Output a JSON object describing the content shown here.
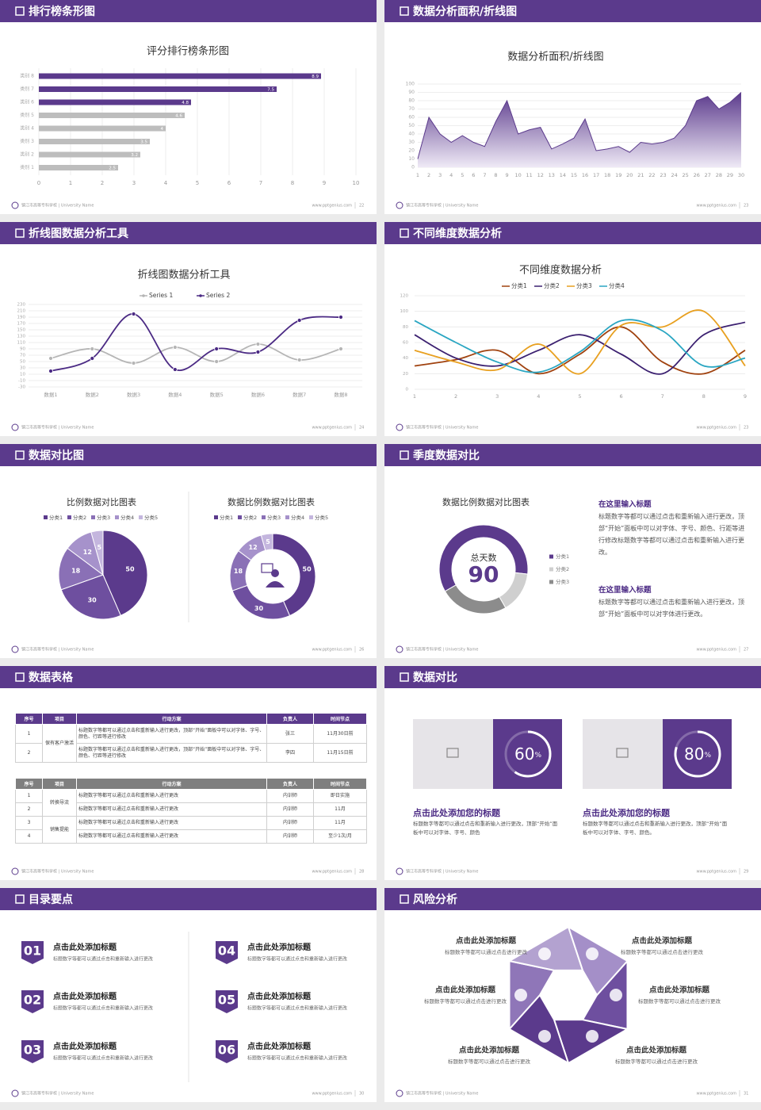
{
  "footer": {
    "school": "镇江市高等专科学校 | University Name",
    "site": "www.pptgenius.com"
  },
  "slides": [
    {
      "title": "排行榜条形图",
      "page": 22,
      "chart_data": {
        "type": "bar",
        "orientation": "horizontal",
        "title": "评分排行榜条形图",
        "categories": [
          "类别 8",
          "类别 7",
          "类别 6",
          "类别 5",
          "类别 4",
          "类别 3",
          "类别 2",
          "类别 1"
        ],
        "values": [
          8.9,
          7.5,
          4.8,
          4.6,
          4,
          3.5,
          3.2,
          2.5
        ],
        "colors": [
          "#5b3a8c",
          "#5b3a8c",
          "#5b3a8c",
          "#bdbdbd",
          "#bdbdbd",
          "#bdbdbd",
          "#bdbdbd",
          "#bdbdbd"
        ],
        "xlim": [
          0,
          10
        ],
        "xticks": [
          0,
          1,
          2,
          3,
          4,
          5,
          6,
          7,
          8,
          9,
          10
        ],
        "grid": true
      }
    },
    {
      "title": "数据分析面积/折线图",
      "page": 23,
      "chart_data": {
        "type": "area",
        "title": "数据分析面积/折线图",
        "categories": [
          "1",
          "2",
          "3",
          "4",
          "5",
          "6",
          "7",
          "8",
          "9",
          "10",
          "11",
          "12",
          "13",
          "14",
          "15",
          "16",
          "17",
          "18",
          "19",
          "20",
          "21",
          "22",
          "23",
          "24",
          "25",
          "26",
          "27",
          "28",
          "29",
          "30"
        ],
        "values": [
          10,
          60,
          40,
          30,
          38,
          30,
          25,
          55,
          80,
          40,
          45,
          48,
          22,
          28,
          35,
          58,
          20,
          22,
          25,
          18,
          30,
          28,
          30,
          35,
          50,
          80,
          85,
          70,
          78,
          90
        ],
        "color": "#5b3a8c",
        "ylim": [
          0,
          100
        ],
        "yticks": [
          0,
          10,
          20,
          30,
          40,
          50,
          60,
          70,
          80,
          90,
          100
        ],
        "grid": true
      }
    },
    {
      "title": "折线图数据分析工具",
      "page": 24,
      "chart_data": {
        "type": "line",
        "smooth": true,
        "markers": true,
        "title": "折线图数据分析工具",
        "categories": [
          "数据1",
          "数据2",
          "数据3",
          "数据4",
          "数据5",
          "数据6",
          "数据7",
          "数据8"
        ],
        "series": [
          {
            "name": "Series 1",
            "color": "#b5b5b5",
            "values": [
              60,
              90,
              45,
              95,
              50,
              105,
              55,
              90
            ]
          },
          {
            "name": "Series 2",
            "color": "#4b2a84",
            "values": [
              20,
              60,
              200,
              25,
              90,
              80,
              180,
              190
            ]
          }
        ],
        "ylim": [
          -30,
          230
        ],
        "yticks": [
          -30,
          -10,
          10,
          30,
          50,
          70,
          90,
          110,
          130,
          150,
          170,
          190,
          210,
          230
        ],
        "grid": true,
        "legend": "top"
      }
    },
    {
      "title": "不同维度数据分析",
      "page": 23,
      "chart_data": {
        "type": "line",
        "smooth": true,
        "markers": false,
        "title": "不同维度数据分析",
        "categories": [
          "1",
          "2",
          "3",
          "4",
          "5",
          "6",
          "7",
          "8",
          "9"
        ],
        "series": [
          {
            "name": "分类1",
            "color": "#a0420f",
            "values": [
              30,
              38,
              50,
              20,
              45,
              80,
              35,
              20,
              50
            ]
          },
          {
            "name": "分类2",
            "color": "#3b2070",
            "values": [
              70,
              40,
              30,
              50,
              70,
              45,
              20,
              70,
              86
            ]
          },
          {
            "name": "分类3",
            "color": "#e8a020",
            "values": [
              50,
              35,
              25,
              58,
              20,
              82,
              80,
              100,
              30
            ]
          },
          {
            "name": "分类4",
            "color": "#2aa6c2",
            "values": [
              88,
              60,
              35,
              22,
              48,
              88,
              75,
              30,
              40
            ]
          }
        ],
        "ylim": [
          0,
          120
        ],
        "yticks": [
          0,
          20,
          40,
          60,
          80,
          100,
          120
        ],
        "grid": true,
        "legend": "top"
      }
    },
    {
      "title": "数据对比图",
      "page": 26,
      "chart_data": [
        {
          "type": "pie",
          "title": "比例数据对比图表",
          "categories": [
            "分类1",
            "分类2",
            "分类3",
            "分类4",
            "分类5"
          ],
          "values": [
            50,
            30,
            18,
            12,
            5
          ],
          "colors": [
            "#5b3a8c",
            "#6e4f9f",
            "#8a70b6",
            "#a692cb",
            "#c4b6de"
          ],
          "legend": "top"
        },
        {
          "type": "donut",
          "title": "数据比例数据对比图表",
          "categories": [
            "分类1",
            "分类2",
            "分类3",
            "分类4",
            "分类5"
          ],
          "values": [
            50,
            30,
            18,
            12,
            5
          ],
          "colors": [
            "#5b3a8c",
            "#6e4f9f",
            "#8a70b6",
            "#a692cb",
            "#c4b6de"
          ],
          "legend": "top"
        }
      ]
    },
    {
      "title": "季度数据对比",
      "page": 27,
      "chart_data": {
        "type": "donut",
        "title": "数据比例数据对比图表",
        "categories": [
          "分类1",
          "分类2",
          "分类3"
        ],
        "values": [
          60,
          15,
          25
        ],
        "colors": [
          "#5b3a8c",
          "#cfcfcf",
          "#8c8c8c"
        ],
        "center_label": "总天数",
        "center_value": 90,
        "legend": "right"
      },
      "notes": [
        {
          "heading": "在这里输入标题",
          "text": "标题数字等都可以通过点击和重新输入进行更改，顶部“开始”面板中可以对字体、字号、颜色、行距等进行修改标题数字等都可以通过点击和重新输入进行更改。"
        },
        {
          "heading": "在这里输入标题",
          "text": "标题数字等都可以通过点击和重新输入进行更改，顶部“开始”面板中可以对字体进行更改。"
        }
      ]
    },
    {
      "title": "数据表格",
      "page": 28,
      "tables": [
        {
          "color": "#5b3a8c",
          "header": [
            "序号",
            "项目",
            "行动方案",
            "负责人",
            "时间节点"
          ],
          "groups": [
            {
              "item": "保有客户激活",
              "rows": [
                [
                  "1",
                  "标题数字等都可以通过点击和重新输入进行更改，顶部“开始”面板中可以对字体、字号、颜色、行距等进行修改",
                  "张三",
                  "11月30日前"
                ],
                [
                  "2",
                  "标题数字等都可以通过点击和重新输入进行更改，顶部“开始”面板中可以对字体、字号、颜色、行距等进行修改",
                  "李四",
                  "11月15日前"
                ]
              ]
            }
          ]
        },
        {
          "color": "#7f7f7f",
          "header": [
            "序号",
            "项目",
            "行动方案",
            "负责人",
            "时间节点"
          ],
          "groups": [
            {
              "item": "转换导流",
              "rows": [
                [
                  "1",
                  "标题数字等都可以通过点击和重新输入进行更改",
                  "内训师",
                  "即日实施"
                ],
                [
                  "2",
                  "标题数字等都可以通过点击和重新输入进行更改",
                  "内训师",
                  "11月"
                ]
              ]
            },
            {
              "item": "销售提能",
              "rows": [
                [
                  "3",
                  "标题数字等都可以通过点击和重新输入进行更改",
                  "内训师",
                  "11月"
                ],
                [
                  "4",
                  "标题数字等都可以通过点击和重新输入进行更改",
                  "内训师",
                  "至少1次/月"
                ]
              ]
            }
          ]
        }
      ]
    },
    {
      "title": "数据对比",
      "page": 29,
      "cards": [
        {
          "value": 60,
          "unit": "%",
          "heading": "点击此处添加您的标题",
          "text": "标题数字等都可以通过点击和重新输入进行更改，顶部“开始”面板中可以对字体、字号、颜色"
        },
        {
          "value": 80,
          "unit": "%",
          "heading": "点击此处添加您的标题",
          "text": "标题数字等都可以通过点击和重新输入进行更改，顶部“开始”面板中可以对字体、字号、颜色。"
        }
      ]
    },
    {
      "title": "目录要点",
      "page": 30,
      "items": [
        {
          "number": "01",
          "heading": "点击此处添加标题",
          "text": "标题数字等都可以通过点击和重新输入进行更改"
        },
        {
          "number": "02",
          "heading": "点击此处添加标题",
          "text": "标题数字等都可以通过点击和重新输入进行更改"
        },
        {
          "number": "03",
          "heading": "点击此处添加标题",
          "text": "标题数字等都可以通过点击和重新输入进行更改"
        },
        {
          "number": "04",
          "heading": "点击此处添加标题",
          "text": "标题数字等都可以通过点击和重新输入进行更改"
        },
        {
          "number": "05",
          "heading": "点击此处添加标题",
          "text": "标题数字等都可以通过点击和重新输入进行更改"
        },
        {
          "number": "06",
          "heading": "点击此处添加标题",
          "text": "标题数字等都可以通过点击和重新输入进行更改"
        }
      ]
    },
    {
      "title": "风险分析",
      "page": 31,
      "points": [
        {
          "heading": "点击此处添加标题",
          "text": "标题数字等都可以通过点击进行更改"
        },
        {
          "heading": "点击此处添加标题",
          "text": "标题数字等都可以通过点击进行更改"
        },
        {
          "heading": "点击此处添加标题",
          "text": "标题数字等都可以通过点击进行更改"
        },
        {
          "heading": "点击此处添加标题",
          "text": "标题数字等都可以通过点击进行更改"
        },
        {
          "heading": "点击此处添加标题",
          "text": "标题数字等都可以通过点击进行更改"
        },
        {
          "heading": "点击此处添加标题",
          "text": "标题数字等都可以通过点击进行更改"
        }
      ]
    }
  ]
}
